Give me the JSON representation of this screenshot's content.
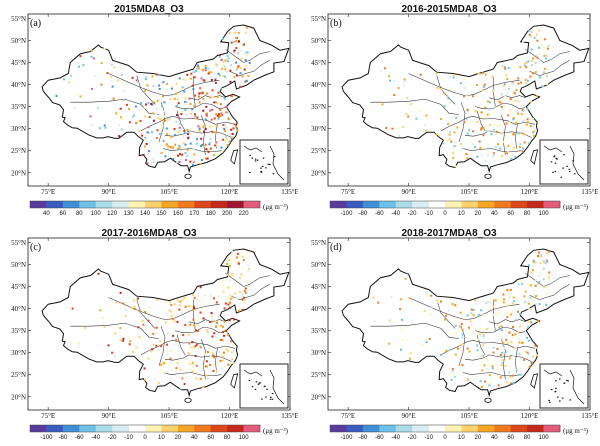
{
  "panels": [
    {
      "title": "2015MDA8_O3",
      "label": "(a)",
      "colorbar": {
        "ticks": [
          "40",
          "60",
          "80",
          "100",
          "120",
          "130",
          "140",
          "150",
          "160",
          "170",
          "180",
          "200",
          "220"
        ],
        "colors": [
          "#5b3a9e",
          "#3a5bbf",
          "#3f8fd6",
          "#6ec0e8",
          "#a9dbe8",
          "#d9eef2",
          "#fff3b3",
          "#ffd26e",
          "#f5a623",
          "#f07a1e",
          "#e0461b",
          "#c4281b",
          "#a0152f",
          "#e25b7b"
        ],
        "unit": "(μg m⁻³)"
      }
    },
    {
      "title": "2016-2015MDA8_O3",
      "label": "(b)",
      "colorbar": {
        "ticks": [
          "-100",
          "-80",
          "-60",
          "-40",
          "-20",
          "-10",
          "0",
          "10",
          "20",
          "40",
          "60",
          "80",
          "100"
        ],
        "colors": [
          "#5b3a9e",
          "#3a5bbf",
          "#3f8fd6",
          "#6ec0e8",
          "#a9dbe8",
          "#d9eef2",
          "#ffffff",
          "#fff3b3",
          "#ffd26e",
          "#f5a623",
          "#f07a1e",
          "#e0461b",
          "#c4281b",
          "#e25b7b"
        ],
        "unit": "(μg m⁻³)"
      }
    },
    {
      "title": "2017-2016MDA8_O3",
      "label": "(c)",
      "colorbar": {
        "ticks": [
          "-100",
          "-80",
          "-60",
          "-40",
          "-20",
          "-10",
          "0",
          "10",
          "20",
          "40",
          "60",
          "80",
          "100"
        ],
        "colors": [
          "#5b3a9e",
          "#3a5bbf",
          "#3f8fd6",
          "#6ec0e8",
          "#a9dbe8",
          "#d9eef2",
          "#ffffff",
          "#fff3b3",
          "#ffd26e",
          "#f5a623",
          "#f07a1e",
          "#e0461b",
          "#c4281b",
          "#e25b7b"
        ],
        "unit": "(μg m⁻³)"
      }
    },
    {
      "title": "2018-2017MDA8_O3",
      "label": "(d)",
      "colorbar": {
        "ticks": [
          "-100",
          "-80",
          "-60",
          "-40",
          "-20",
          "-10",
          "0",
          "10",
          "20",
          "40",
          "60",
          "80",
          "100"
        ],
        "colors": [
          "#5b3a9e",
          "#3a5bbf",
          "#3f8fd6",
          "#6ec0e8",
          "#a9dbe8",
          "#d9eef2",
          "#ffffff",
          "#fff3b3",
          "#ffd26e",
          "#f5a623",
          "#f07a1e",
          "#e0461b",
          "#c4281b",
          "#e25b7b"
        ],
        "unit": "(μg m⁻³)"
      }
    }
  ],
  "axes": {
    "lat_labels": [
      "55°N",
      "50°N",
      "45°N",
      "40°N",
      "35°N",
      "30°N",
      "25°N",
      "20°N"
    ],
    "lon_labels": [
      "75°E",
      "90°E",
      "105°E",
      "120°E",
      "135°E"
    ]
  }
}
